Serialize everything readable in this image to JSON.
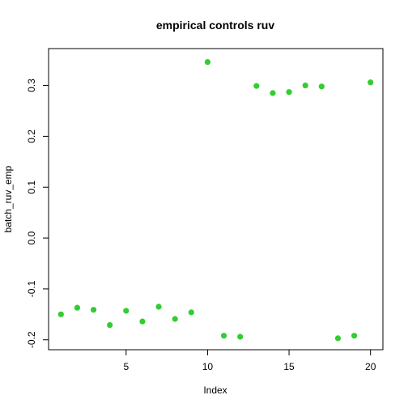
{
  "chart_data": {
    "type": "scatter",
    "title": "empirical controls ruv",
    "xlabel": "Index",
    "ylabel": "batch_ruv_emp",
    "xlim": [
      0.24,
      20.76
    ],
    "ylim": [
      -0.2195,
      0.3725
    ],
    "x_ticks": [
      5,
      10,
      15,
      20
    ],
    "y_ticks": [
      -0.2,
      -0.1,
      0.0,
      0.1,
      0.2,
      0.3
    ],
    "x_tick_labels": [
      "5",
      "10",
      "15",
      "20"
    ],
    "y_tick_labels": [
      "-0.2",
      "-0.1",
      "0.0",
      "0.1",
      "0.2",
      "0.3"
    ],
    "grid": false,
    "legend": "none",
    "point_color": "#32CD32",
    "series": [
      {
        "x": [
          1,
          2,
          3,
          4,
          5,
          6,
          7,
          8,
          9,
          10,
          11,
          12,
          13,
          14,
          15,
          16,
          17,
          18,
          19,
          20
        ],
        "y": [
          -0.15,
          -0.137,
          -0.141,
          -0.171,
          -0.143,
          -0.164,
          -0.135,
          -0.159,
          -0.146,
          0.346,
          -0.192,
          -0.194,
          0.299,
          0.285,
          0.287,
          0.3,
          0.298,
          -0.197,
          -0.192,
          0.306
        ]
      }
    ]
  }
}
